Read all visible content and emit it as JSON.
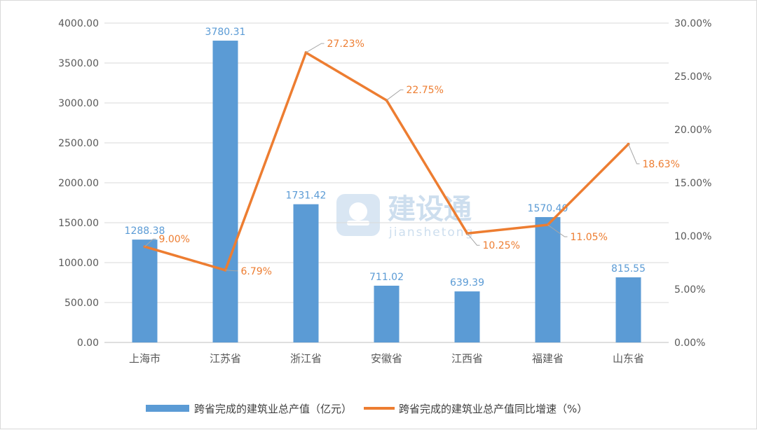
{
  "watermark": {
    "brand": "建设通",
    "sub": "jianshetong"
  },
  "chart_data": {
    "type": "bar",
    "categories": [
      "上海市",
      "江苏省",
      "浙江省",
      "安徽省",
      "江西省",
      "福建省",
      "山东省"
    ],
    "series": [
      {
        "name": "跨省完成的建筑业总产值（亿元）",
        "type": "bar",
        "axis": "left",
        "color": "#5b9bd5",
        "values": [
          1288.38,
          3780.31,
          1731.42,
          711.02,
          639.39,
          1570.4,
          815.55
        ],
        "labels": [
          "1288.38",
          "3780.31",
          "1731.42",
          "711.02",
          "639.39",
          "1570.40",
          "815.55"
        ]
      },
      {
        "name": "跨省完成的建筑业总产值同比增速（%）",
        "type": "line",
        "axis": "right",
        "color": "#ed7d31",
        "values": [
          9.0,
          6.79,
          27.23,
          22.75,
          10.25,
          11.05,
          18.63
        ],
        "labels": [
          "9.00%",
          "6.79%",
          "27.23%",
          "22.75%",
          "10.25%",
          "11.05%",
          "18.63%"
        ]
      }
    ],
    "y_left": {
      "ylim": [
        0,
        4000
      ],
      "ticks": [
        "0.00",
        "500.00",
        "1000.00",
        "1500.00",
        "2000.00",
        "2500.00",
        "3000.00",
        "3500.00",
        "4000.00"
      ]
    },
    "y_right": {
      "ylim": [
        0,
        30
      ],
      "ticks": [
        "0.00%",
        "5.00%",
        "10.00%",
        "15.00%",
        "20.00%",
        "25.00%",
        "30.00%"
      ]
    },
    "grid": true,
    "legend_position": "bottom"
  }
}
